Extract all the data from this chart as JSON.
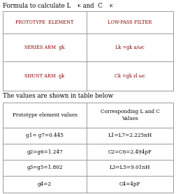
{
  "title": "Formula to calculate L",
  "title_sub1": "K",
  "title_mid": " and  C",
  "title_sub2": "K",
  "table1_col1_header": "PROTOTYPE  ELEMENT",
  "table1_col2_header": "LOW-PASS FILTER",
  "table1_row1_col1": "SERIES ARM  gk",
  "table1_row1_col2": "Lk =gk a/ωc",
  "table1_row2_col1": "SHUNT ARM  gk",
  "table1_row2_col2": "Ck =gk zl ωc",
  "text_between": "The values are shown in table below",
  "table2_col1_header": "Prototype element values",
  "table2_col2_header": "Corresponding L and C\nValues",
  "table2_rows": [
    [
      "g1= g7=0.445",
      "L1=L7=2.225nH"
    ],
    [
      "g2=g6=1.247",
      "C2=C6=2.494pF"
    ],
    [
      "g3=g5=1.802",
      "L3=L5=9.01nH"
    ],
    [
      "g4=2",
      "C4=4pF"
    ]
  ],
  "bg_color": "#ffffff",
  "text_color": "#000000",
  "header_text_color": "#8B0000",
  "table_border_color": "#999999",
  "fig_width": 2.52,
  "fig_height": 2.78,
  "dpi": 100
}
